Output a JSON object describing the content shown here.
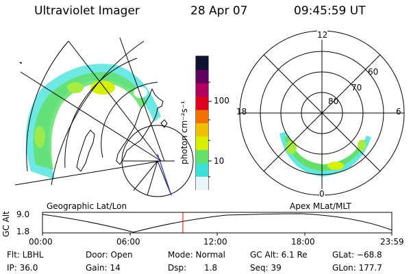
{
  "header": {
    "instrument": "Ultraviolet Imager",
    "date": "28 Apr 07",
    "time": "09:45:59 UT"
  },
  "left_map": {
    "label": "Geographic Lat/Lon"
  },
  "right_map": {
    "label": "Apex MLat/MLT",
    "mlt_labels": [
      "12",
      "18",
      "6",
      "0"
    ],
    "lat_labels": [
      "60",
      "70",
      "80"
    ]
  },
  "colorbar": {
    "unit_label": "photon cm⁻²s⁻¹",
    "ticks": [
      "100",
      "10"
    ],
    "colors": [
      "#e8f4f8",
      "#3ce0d8",
      "#62e06a",
      "#d6f000",
      "#f0c000",
      "#f07000",
      "#e00020",
      "#b00060",
      "#600060",
      "#101030"
    ]
  },
  "altitude_plot": {
    "axis_label": "GC Alt",
    "y_ticks": [
      "9.0",
      "1.8"
    ],
    "x_ticks": [
      "00:00",
      "06:00",
      "12:00",
      "18:00",
      "23:59"
    ],
    "current_time_color": "#e00000"
  },
  "info": {
    "flt": "Flt: LBHL",
    "ip": "IP: 36.0",
    "door": "Door: Open",
    "gain": "Gain: 14",
    "mode": "Mode: Normal",
    "dsp_label": "Dsp:",
    "dsp_value": "1.8",
    "gc_alt": "GC Alt: 6.1 Re",
    "seq": "Seq: 39",
    "glat": "GLat: −68.8",
    "glon": "GLon: 177.7"
  }
}
